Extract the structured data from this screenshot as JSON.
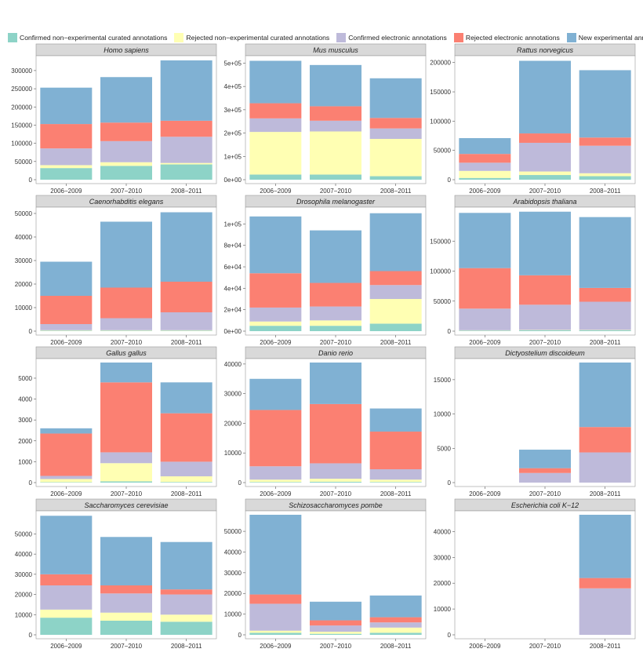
{
  "legend": [
    {
      "label": "Confirmed non−experimental curated annotations",
      "color": "#8dd3c7"
    },
    {
      "label": "Rejected non−experimental curated annotations",
      "color": "#ffffb3"
    },
    {
      "label": "Confirmed electronic annotations",
      "color": "#bebada"
    },
    {
      "label": "Rejected electronic annotations",
      "color": "#fb8072"
    },
    {
      "label": "New experimental annotations",
      "color": "#80b1d3"
    }
  ],
  "chart_data": [
    {
      "type": "bar",
      "stacked": true,
      "title": "Homo sapiens",
      "categories": [
        "2006−2009",
        "2007−2010",
        "2008−2011"
      ],
      "ylim": [
        0,
        330000
      ],
      "yticks": [
        "0",
        "50000",
        "100000",
        "150000",
        "200000",
        "250000",
        "300000"
      ],
      "series": [
        {
          "name": "Confirmed non−experimental curated annotations",
          "values": [
            32000,
            38000,
            42000
          ]
        },
        {
          "name": "Rejected non−experimental curated annotations",
          "values": [
            8000,
            10000,
            4000
          ]
        },
        {
          "name": "Confirmed electronic annotations",
          "values": [
            46000,
            58000,
            72000
          ]
        },
        {
          "name": "Rejected electronic annotations",
          "values": [
            67000,
            51000,
            44000
          ]
        },
        {
          "name": "New experimental annotations",
          "values": [
            100000,
            125000,
            166000
          ]
        }
      ]
    },
    {
      "type": "bar",
      "stacked": true,
      "title": "Mus musculus",
      "categories": [
        "2006−2009",
        "2007−2010",
        "2008−2011"
      ],
      "ylim": [
        0,
        515000
      ],
      "yticks": [
        "0e+00",
        "1e+05",
        "2e+05",
        "3e+05",
        "4e+05",
        "5e+05"
      ],
      "series": [
        {
          "name": "Confirmed non−experimental curated annotations",
          "values": [
            22000,
            22000,
            15000
          ]
        },
        {
          "name": "Rejected non−experimental curated annotations",
          "values": [
            183000,
            185000,
            160000
          ]
        },
        {
          "name": "Confirmed electronic annotations",
          "values": [
            58000,
            46000,
            45000
          ]
        },
        {
          "name": "Rejected electronic annotations",
          "values": [
            65000,
            62000,
            45000
          ]
        },
        {
          "name": "New experimental annotations",
          "values": [
            182000,
            177000,
            170000
          ]
        }
      ]
    },
    {
      "type": "bar",
      "stacked": true,
      "title": "Rattus norvegicus",
      "categories": [
        "2006−2009",
        "2007−2010",
        "2008−2011"
      ],
      "ylim": [
        0,
        205000
      ],
      "yticks": [
        "0",
        "50000",
        "100000",
        "150000",
        "200000"
      ],
      "series": [
        {
          "name": "Confirmed non−experimental curated annotations",
          "values": [
            3000,
            8000,
            6000
          ]
        },
        {
          "name": "Rejected non−experimental curated annotations",
          "values": [
            12000,
            6000,
            5000
          ]
        },
        {
          "name": "Confirmed electronic annotations",
          "values": [
            14000,
            49000,
            47000
          ]
        },
        {
          "name": "Rejected electronic annotations",
          "values": [
            15000,
            16000,
            14000
          ]
        },
        {
          "name": "New experimental annotations",
          "values": [
            27000,
            124000,
            115000
          ]
        }
      ]
    },
    {
      "type": "bar",
      "stacked": true,
      "title": "Caenorhabditis elegans",
      "categories": [
        "2006−2009",
        "2007−2010",
        "2008−2011"
      ],
      "ylim": [
        0,
        51000
      ],
      "yticks": [
        "0",
        "10000",
        "20000",
        "30000",
        "40000",
        "50000"
      ],
      "series": [
        {
          "name": "Confirmed non−experimental curated annotations",
          "values": [
            200,
            200,
            200
          ]
        },
        {
          "name": "Rejected non−experimental curated annotations",
          "values": [
            200,
            200,
            200
          ]
        },
        {
          "name": "Confirmed electronic annotations",
          "values": [
            2600,
            5100,
            7600
          ]
        },
        {
          "name": "Rejected electronic annotations",
          "values": [
            12000,
            13000,
            13000
          ]
        },
        {
          "name": "New experimental annotations",
          "values": [
            14500,
            28000,
            29500
          ]
        }
      ]
    },
    {
      "type": "bar",
      "stacked": true,
      "title": "Drosophila melanogaster",
      "categories": [
        "2006−2009",
        "2007−2010",
        "2008−2011"
      ],
      "ylim": [
        0,
        112000
      ],
      "yticks": [
        "0e+00",
        "2e+04",
        "4e+04",
        "6e+04",
        "8e+04",
        "1e+05"
      ],
      "series": [
        {
          "name": "Confirmed non−experimental curated annotations",
          "values": [
            5000,
            5000,
            7000
          ]
        },
        {
          "name": "Rejected non−experimental curated annotations",
          "values": [
            4000,
            5000,
            23000
          ]
        },
        {
          "name": "Confirmed electronic annotations",
          "values": [
            13000,
            13000,
            13000
          ]
        },
        {
          "name": "Rejected electronic annotations",
          "values": [
            32000,
            22000,
            13000
          ]
        },
        {
          "name": "New experimental annotations",
          "values": [
            53000,
            49000,
            54000
          ]
        }
      ]
    },
    {
      "type": "bar",
      "stacked": true,
      "title": "Arabidopsis thaliana",
      "categories": [
        "2006−2009",
        "2007−2010",
        "2008−2011"
      ],
      "ylim": [
        0,
        200000
      ],
      "yticks": [
        "0",
        "50000",
        "100000",
        "150000"
      ],
      "series": [
        {
          "name": "Confirmed non−experimental curated annotations",
          "values": [
            1000,
            1500,
            1500
          ]
        },
        {
          "name": "Rejected non−experimental curated annotations",
          "values": [
            500,
            500,
            500
          ]
        },
        {
          "name": "Confirmed electronic annotations",
          "values": [
            36000,
            42000,
            47000
          ]
        },
        {
          "name": "Rejected electronic annotations",
          "values": [
            67500,
            49000,
            23000
          ]
        },
        {
          "name": "New experimental annotations",
          "values": [
            92000,
            106000,
            118000
          ]
        }
      ]
    },
    {
      "type": "bar",
      "stacked": true,
      "title": "Gallus gallus",
      "categories": [
        "2006−2009",
        "2007−2010",
        "2008−2011"
      ],
      "ylim": [
        0,
        5750
      ],
      "yticks": [
        "0",
        "1000",
        "2000",
        "3000",
        "4000",
        "5000"
      ],
      "series": [
        {
          "name": "Confirmed non−experimental curated annotations",
          "values": [
            20,
            60,
            30
          ]
        },
        {
          "name": "Rejected non−experimental curated annotations",
          "values": [
            150,
            870,
            270
          ]
        },
        {
          "name": "Confirmed electronic annotations",
          "values": [
            150,
            520,
            700
          ]
        },
        {
          "name": "Rejected electronic annotations",
          "values": [
            2030,
            3350,
            2320
          ]
        },
        {
          "name": "New experimental annotations",
          "values": [
            250,
            950,
            1480
          ]
        }
      ]
    },
    {
      "type": "bar",
      "stacked": true,
      "title": "Danio rerio",
      "categories": [
        "2006−2009",
        "2007−2010",
        "2008−2011"
      ],
      "ylim": [
        0,
        40500
      ],
      "yticks": [
        "0",
        "10000",
        "20000",
        "30000",
        "40000"
      ],
      "series": [
        {
          "name": "Confirmed non−experimental curated annotations",
          "values": [
            200,
            300,
            200
          ]
        },
        {
          "name": "Rejected non−experimental curated annotations",
          "values": [
            800,
            1000,
            800
          ]
        },
        {
          "name": "Confirmed electronic annotations",
          "values": [
            4500,
            5200,
            3500
          ]
        },
        {
          "name": "Rejected electronic annotations",
          "values": [
            19000,
            20000,
            12700
          ]
        },
        {
          "name": "New experimental annotations",
          "values": [
            10500,
            14000,
            7800
          ]
        }
      ]
    },
    {
      "type": "bar",
      "stacked": true,
      "title": "Dictyostelium discoideum",
      "categories": [
        "2006−2009",
        "2007−2010",
        "2008−2011"
      ],
      "ylim": [
        0,
        17500
      ],
      "yticks": [
        "0",
        "5000",
        "10000",
        "15000"
      ],
      "series": [
        {
          "name": "Confirmed non−experimental curated annotations",
          "values": [
            0,
            0,
            0
          ]
        },
        {
          "name": "Rejected non−experimental curated annotations",
          "values": [
            0,
            0,
            0
          ]
        },
        {
          "name": "Confirmed electronic annotations",
          "values": [
            0,
            1400,
            4400
          ]
        },
        {
          "name": "Rejected electronic annotations",
          "values": [
            0,
            700,
            3700
          ]
        },
        {
          "name": "New experimental annotations",
          "values": [
            0,
            2700,
            9400
          ]
        }
      ]
    },
    {
      "type": "bar",
      "stacked": true,
      "title": "Saccharomyces cerevisiae",
      "categories": [
        "2006−2009",
        "2007−2010",
        "2008−2011"
      ],
      "ylim": [
        0,
        59500
      ],
      "yticks": [
        "0",
        "10000",
        "20000",
        "30000",
        "40000",
        "50000"
      ],
      "series": [
        {
          "name": "Confirmed non−experimental curated annotations",
          "values": [
            8500,
            7000,
            6500
          ]
        },
        {
          "name": "Rejected non−experimental curated annotations",
          "values": [
            4000,
            4000,
            3500
          ]
        },
        {
          "name": "Confirmed electronic annotations",
          "values": [
            12000,
            9500,
            10000
          ]
        },
        {
          "name": "Rejected electronic annotations",
          "values": [
            5500,
            4000,
            2500
          ]
        },
        {
          "name": "New experimental annotations",
          "values": [
            29000,
            24000,
            23500
          ]
        }
      ]
    },
    {
      "type": "bar",
      "stacked": true,
      "title": "Schizosaccharomyces pombe",
      "categories": [
        "2006−2009",
        "2007−2010",
        "2008−2011"
      ],
      "ylim": [
        0,
        58000
      ],
      "yticks": [
        "0",
        "10000",
        "20000",
        "30000",
        "40000",
        "50000"
      ],
      "series": [
        {
          "name": "Confirmed non−experimental curated annotations",
          "values": [
            1000,
            500,
            1000
          ]
        },
        {
          "name": "Rejected non−experimental curated annotations",
          "values": [
            1000,
            1000,
            2500
          ]
        },
        {
          "name": "Confirmed electronic annotations",
          "values": [
            13000,
            3000,
            2500
          ]
        },
        {
          "name": "Rejected electronic annotations",
          "values": [
            4500,
            2500,
            2500
          ]
        },
        {
          "name": "New experimental annotations",
          "values": [
            38500,
            9000,
            10500
          ]
        }
      ]
    },
    {
      "type": "bar",
      "stacked": true,
      "title": "Escherichia coli K−12",
      "categories": [
        "2006−2009",
        "2007−2010",
        "2008−2011"
      ],
      "ylim": [
        0,
        46500
      ],
      "yticks": [
        "0",
        "10000",
        "20000",
        "30000",
        "40000"
      ],
      "series": [
        {
          "name": "Confirmed non−experimental curated annotations",
          "values": [
            0,
            0,
            0
          ]
        },
        {
          "name": "Rejected non−experimental curated annotations",
          "values": [
            0,
            0,
            0
          ]
        },
        {
          "name": "Confirmed electronic annotations",
          "values": [
            0,
            0,
            18000
          ]
        },
        {
          "name": "Rejected electronic annotations",
          "values": [
            0,
            0,
            4000
          ]
        },
        {
          "name": "New experimental annotations",
          "values": [
            0,
            0,
            24500
          ]
        }
      ]
    }
  ]
}
